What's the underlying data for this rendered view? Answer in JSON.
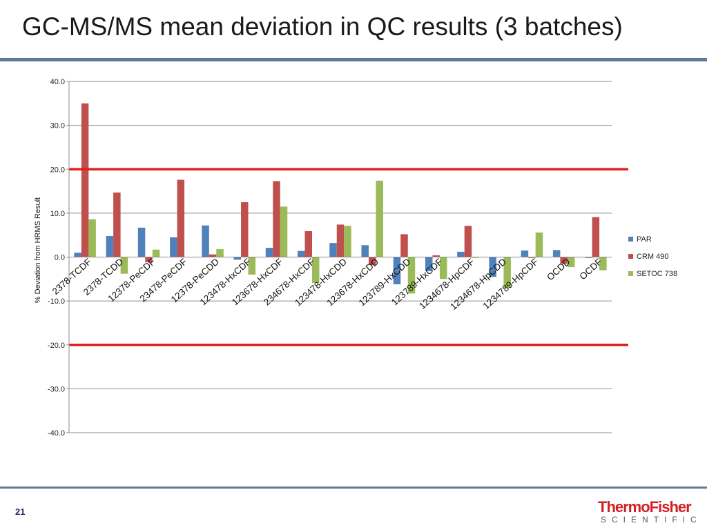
{
  "slide": {
    "title": "GC-MS/MS mean deviation in QC results (3 batches)",
    "page_number": "21",
    "logo_top": "ThermoFisher",
    "logo_bottom": "SCIENTIFIC"
  },
  "colors": {
    "PAR": "#4f81bd",
    "CRM 490": "#c0504d",
    "SETOC 738": "#9bbb59",
    "limit_line": "#e31b1b",
    "rule": "#5b7b99"
  },
  "chart_data": {
    "type": "bar",
    "title": "",
    "xlabel": "",
    "ylabel": "% Deviation  from HRMS Result",
    "ylim": [
      -40,
      40
    ],
    "yticks": [
      40,
      30,
      20,
      10,
      0,
      -10,
      -20,
      -30,
      -40
    ],
    "ytick_labels": [
      "40.0",
      "30.0",
      "20.0",
      "10.0",
      "0.0",
      "-10.0",
      "-20.0",
      "-30.0",
      "-40.0"
    ],
    "grid": true,
    "legend_position": "right",
    "reference_lines": [
      20,
      -20
    ],
    "categories": [
      "2378-TCDF",
      "2378-TCDD",
      "12378-PeCDF",
      "23478-PeCDF",
      "12378-PeCDD",
      "123478-HxCDF",
      "123678-HxCDF",
      "234678-HxCDF",
      "123478-HxCDD",
      "123678-HxCDD",
      "123789-HxCDD",
      "123789-HxCDF",
      "1234678-HpCDF",
      "1234678-HpCDD",
      "1234789-HpCDF",
      "OCDD",
      "OCDF"
    ],
    "series": [
      {
        "name": "PAR",
        "values": [
          1.0,
          4.8,
          6.7,
          4.5,
          7.2,
          -0.6,
          2.1,
          1.4,
          3.2,
          2.7,
          -6.2,
          -3.2,
          1.2,
          -4.5,
          1.5,
          1.6,
          -0.2
        ]
      },
      {
        "name": "CRM 490",
        "values": [
          35.0,
          14.7,
          -1.2,
          17.6,
          0.6,
          12.5,
          17.3,
          5.9,
          7.4,
          -1.8,
          5.2,
          0.4,
          7.1,
          0.0,
          -0.2,
          -1.5,
          9.1
        ]
      },
      {
        "name": "SETOC 738",
        "values": [
          8.6,
          -3.8,
          1.7,
          0.0,
          1.8,
          -4.0,
          11.5,
          -5.9,
          7.1,
          17.4,
          -8.3,
          -5.0,
          -0.2,
          -7.0,
          5.6,
          -2.3,
          -3.0
        ]
      }
    ]
  }
}
